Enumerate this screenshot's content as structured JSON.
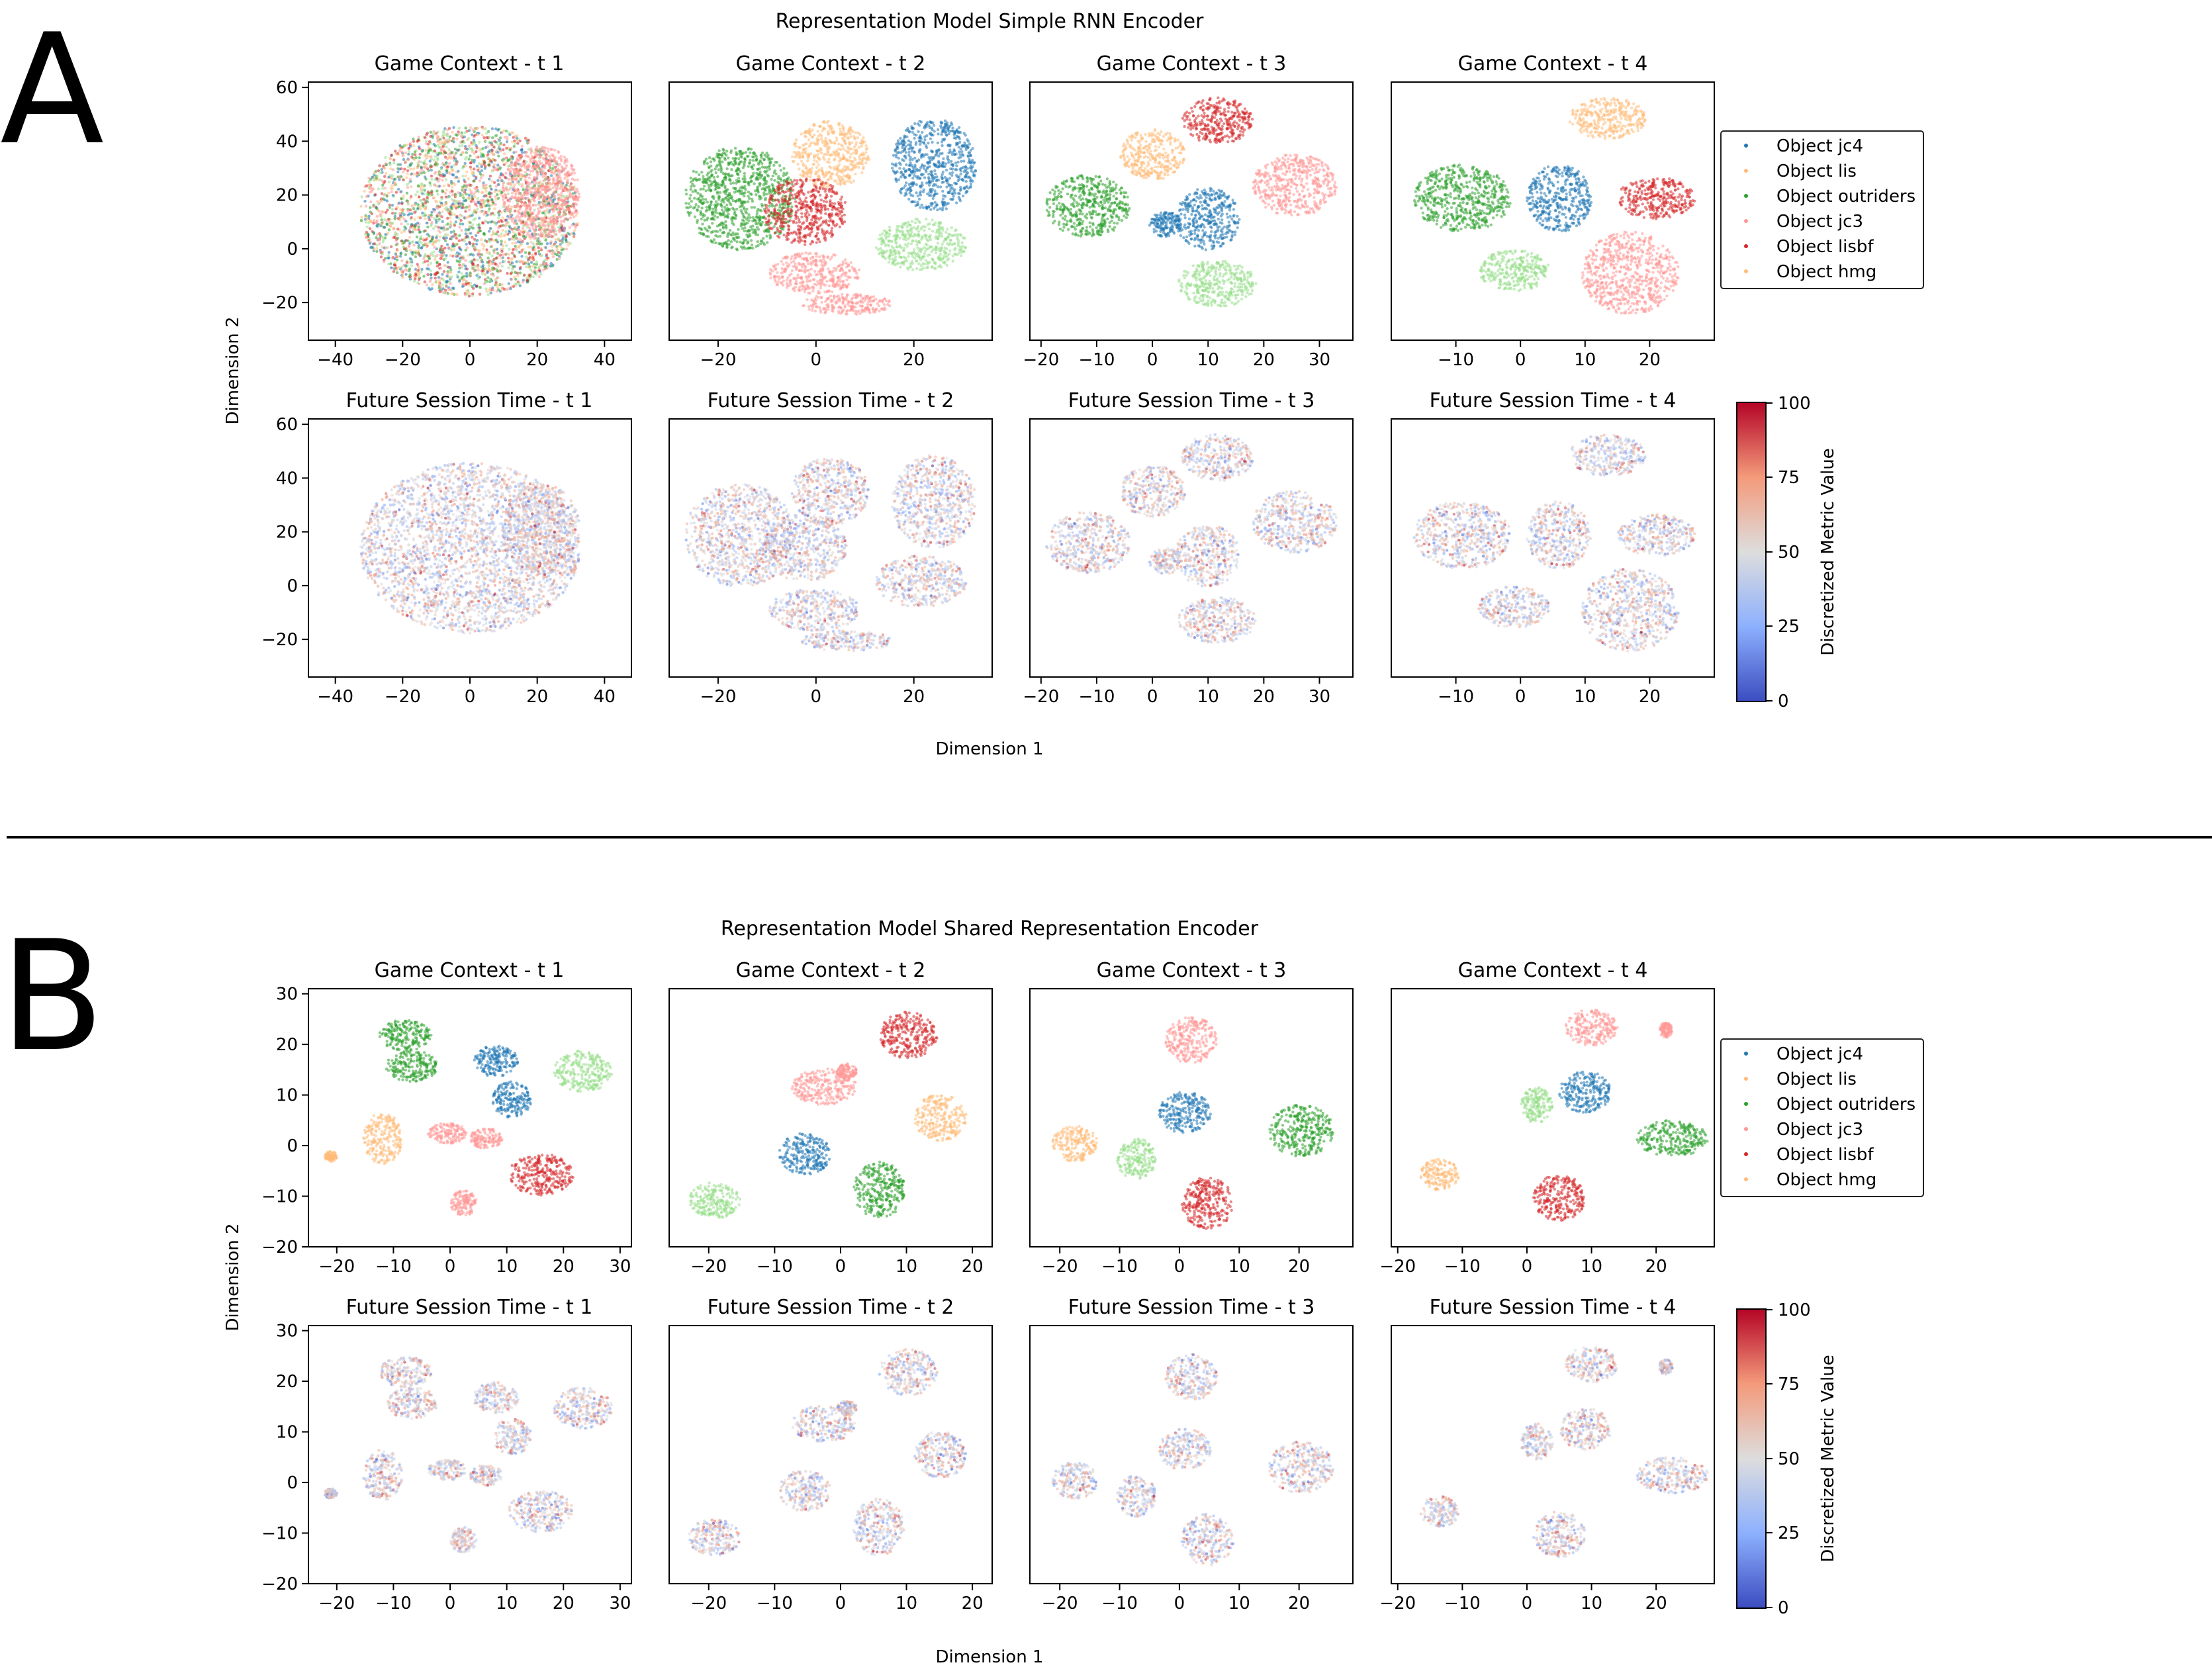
{
  "panels": [
    {
      "letter": "A",
      "title": "Representation Model Simple RNN Encoder",
      "xlabel": "Dimension 1",
      "ylabel": "Dimension 2",
      "colorbar_label": "Discretized Metric Value",
      "colorbar_ticks": [
        "0",
        "25",
        "50",
        "75",
        "100"
      ],
      "legend": [
        "Object jc4",
        "Object lis",
        "Object outriders",
        "Object jc3",
        "Object lisbf",
        "Object hmg"
      ]
    },
    {
      "letter": "B",
      "title": "Representation Model Shared Representation Encoder",
      "xlabel": "Dimension 1",
      "ylabel": "Dimension 2",
      "colorbar_label": "Discretized Metric Value",
      "colorbar_ticks": [
        "0",
        "25",
        "50",
        "75",
        "100"
      ],
      "legend": [
        "Object jc4",
        "Object lis",
        "Object outriders",
        "Object jc3",
        "Object lisbf",
        "Object hmg"
      ]
    }
  ],
  "subplot_titles": {
    "row1": [
      "Game Context - t 1",
      "Game Context - t 2",
      "Game Context - t 3",
      "Game Context - t 4"
    ],
    "row2": [
      "Future Session Time - t 1",
      "Future Session Time - t 2",
      "Future Session Time - t 3",
      "Future Session Time - t 4"
    ]
  },
  "colors": {
    "jc4": "#1f77b4",
    "lis": "#ffbb78",
    "outriders": "#2ca02c",
    "jc3": "#ff9896",
    "lisbf": "#d62728",
    "hmg": "#ffbb78",
    "lightgreen": "#98df8a",
    "cmap_low": "#3b4cc0",
    "cmap_mid": "#dddddd",
    "cmap_high": "#b40426"
  },
  "chart_data": [
    {
      "type": "scatter",
      "panel": "A",
      "description_source": "t-SNE style embedding clusters",
      "axes": [
        {
          "xlim": [
            -48,
            48
          ],
          "ylim": [
            -34,
            62
          ],
          "xticks": [
            -40,
            -20,
            0,
            20,
            40
          ],
          "yticks": [
            -20,
            0,
            20,
            40,
            60
          ]
        },
        {
          "xlim": [
            -30,
            36
          ],
          "ylim": [
            -26,
            38
          ],
          "xticks": [
            -20,
            0,
            20
          ],
          "yticks": []
        },
        {
          "xlim": [
            -22,
            36
          ],
          "ylim": [
            -28,
            40
          ],
          "xticks": [
            -20,
            -10,
            0,
            10,
            20,
            30
          ],
          "yticks": []
        },
        {
          "xlim": [
            -20,
            30
          ],
          "ylim": [
            -28,
            38
          ],
          "xticks": [
            -10,
            0,
            10,
            20
          ],
          "yticks": []
        }
      ],
      "series_colors": [
        "jc4",
        "lis",
        "outriders",
        "jc3",
        "lisbf",
        "hmg"
      ]
    },
    {
      "type": "scatter",
      "panel": "B",
      "axes": [
        {
          "xlim": [
            -25,
            32
          ],
          "ylim": [
            -20,
            31
          ],
          "xticks": [
            -20,
            -10,
            0,
            10,
            20,
            30
          ],
          "yticks": [
            -20,
            -10,
            0,
            10,
            20,
            30
          ]
        },
        {
          "xlim": [
            -26,
            23
          ],
          "ylim": [
            -20,
            30
          ],
          "xticks": [
            -20,
            -10,
            0,
            10,
            20
          ],
          "yticks": []
        },
        {
          "xlim": [
            -25,
            29
          ],
          "ylim": [
            -20,
            30
          ],
          "xticks": [
            -20,
            -10,
            0,
            10,
            20
          ],
          "yticks": []
        },
        {
          "xlim": [
            -21,
            29
          ],
          "ylim": [
            -20,
            30
          ],
          "xticks": [
            -20,
            -10,
            0,
            10,
            20
          ],
          "yticks": []
        }
      ],
      "series_colors": [
        "jc4",
        "lis",
        "outriders",
        "jc3",
        "lisbf",
        "hmg"
      ]
    }
  ]
}
